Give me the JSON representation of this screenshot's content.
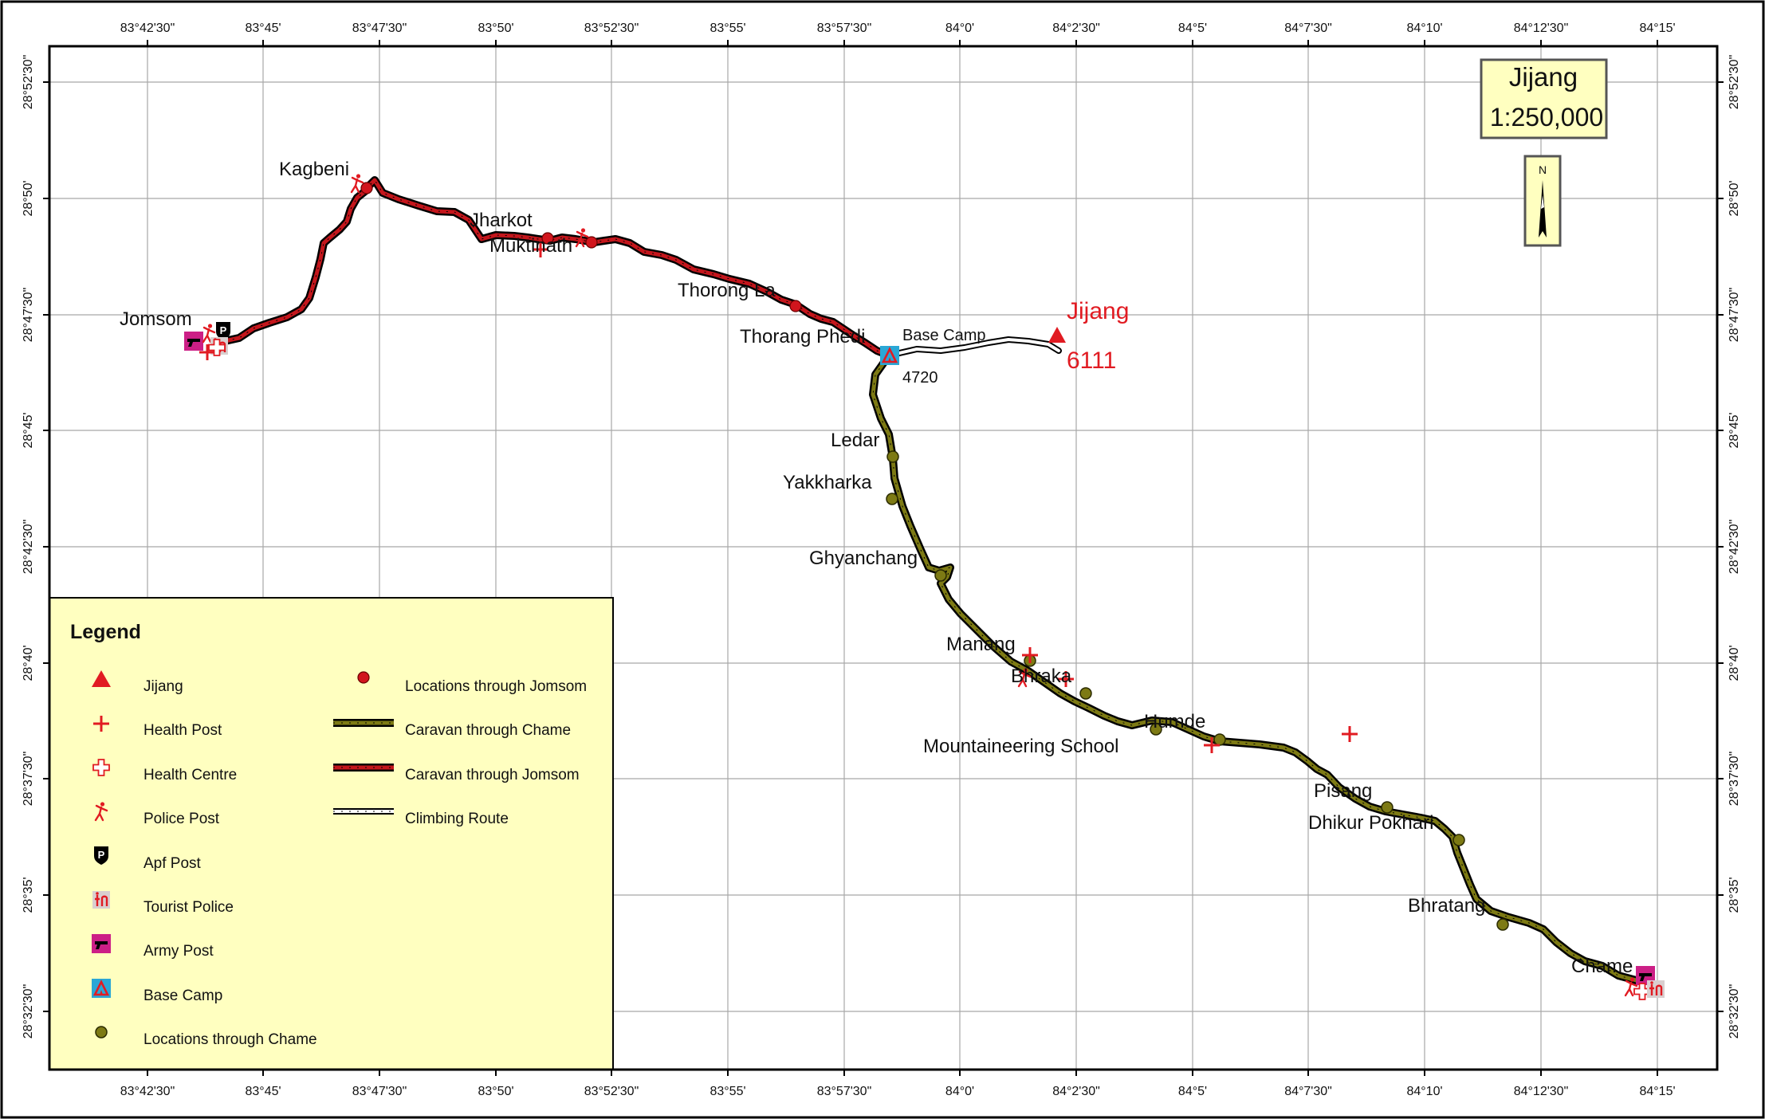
{
  "map": {
    "title": "Jijang",
    "scale": "1:250,000",
    "north_label": "N"
  },
  "grid": {
    "lon_labels": [
      "83°42'30\"",
      "83°45'",
      "83°47'30\"",
      "83°50'",
      "83°52'30\"",
      "83°55'",
      "83°57'30\"",
      "84°0'",
      "84°2'30\"",
      "84°5'",
      "84°7'30\"",
      "84°10'",
      "84°12'30\"",
      "84°15'"
    ],
    "lat_labels": [
      "28°52'30\"",
      "28°50'",
      "28°47'30\"",
      "28°45'",
      "28°42'30\"",
      "28°40'",
      "28°37'30\"",
      "28°35'",
      "28°32'30\""
    ]
  },
  "places": {
    "jomsom": "Jomsom",
    "kagbeni": "Kagbeni",
    "jharkot": "Jharkot",
    "muktinath": "Muktinath",
    "thorong_la": "Thorong La",
    "thorang_phedi": "Thorang Phedi",
    "base_camp": "Base Camp",
    "base_camp_elev": "4720",
    "peak_name": "Jijang",
    "peak_elev": "6111",
    "ledar": "Ledar",
    "yakkharka": "Yakkharka",
    "ghyanchang": "Ghyanchang",
    "manang": "Manang",
    "bhraka": "Bhraka",
    "humde": "Humde",
    "mountaineering_school": "Mountaineering School",
    "pisang": "Pisang",
    "dhikur_pokhari": "Dhikur Pokhari",
    "bhratang": "Bhratang",
    "chame": "Chame"
  },
  "colors": {
    "red": "#e11b22",
    "route_red": "#c4161c",
    "route_olive": "#7d7a14",
    "legend_bg": "#ffffc0",
    "army": "#cc1f86",
    "base_camp": "#2aa7d6",
    "tourist_police": "#d9cfcf"
  },
  "legend": {
    "title": "Legend",
    "items": {
      "jijang": "Jijang",
      "health_post": "Health Post",
      "health_centre": "Health Centre",
      "police_post": "Police Post",
      "apf_post": "Apf Post",
      "tourist_police": "Tourist Police",
      "army_post": "Army Post",
      "base_camp": "Base Camp",
      "locations_chame": "Locations through Chame",
      "locations_jomsom": "Locations through Jomsom",
      "caravan_chame": "Caravan through Chame",
      "caravan_jomsom": "Caravan through Jomsom",
      "climbing_route": "Climbing Route"
    },
    "icons": {
      "jijang": "red-triangle-icon",
      "health_post": "red-cross-icon",
      "health_centre": "outline-cross-icon",
      "police_post": "police-figure-icon",
      "apf_post": "apf-shield-icon",
      "tourist_police": "tourist-police-icon",
      "army_post": "army-gun-icon",
      "base_camp": "tent-icon",
      "locations_chame": "olive-dot-icon",
      "locations_jomsom": "red-dot-icon"
    }
  }
}
